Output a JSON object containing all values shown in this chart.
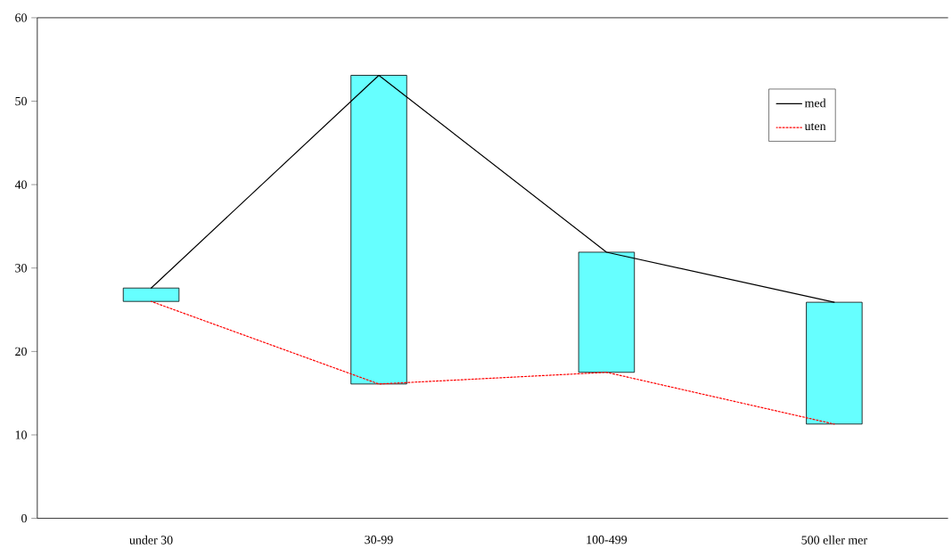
{
  "chart_data": {
    "type": "line",
    "categories": [
      "under 30",
      "30-99",
      "100-499",
      "500 eller mer"
    ],
    "ylim": [
      0,
      60
    ],
    "yticks": [
      0,
      10,
      20,
      30,
      40,
      50,
      60
    ],
    "grid": false,
    "legend": "top right",
    "marker": "none",
    "series": [
      {
        "name": "med",
        "color": "#000000",
        "line_style": "solid",
        "values": [
          27.6,
          53.1,
          31.9,
          25.9
        ]
      },
      {
        "name": "uten",
        "color": "#ff0000",
        "line_style": "dotted",
        "values": [
          26.0,
          16.1,
          17.5,
          11.3
        ]
      },
      {
        "type": "bar",
        "color": "#66ffff",
        "base": [
          26.0,
          16.1,
          17.5,
          11.3
        ],
        "values": [
          1.6,
          37.0,
          14.4,
          14.6
        ]
      }
    ]
  }
}
